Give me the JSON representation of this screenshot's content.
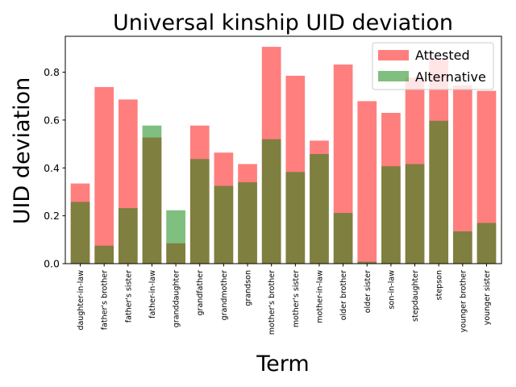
{
  "chart_data": {
    "type": "bar",
    "title": "Universal kinship UID deviation",
    "xlabel": "Term",
    "ylabel": "UID deviation",
    "ylim": [
      0,
      0.95
    ],
    "yticks": [
      "0.0",
      "0.2",
      "0.4",
      "0.6",
      "0.8"
    ],
    "ytick_values": [
      0,
      0.2,
      0.4,
      0.6,
      0.8
    ],
    "legend_position": "top-right",
    "grid": false,
    "categories": [
      "daughter-in-law",
      "father's brother",
      "father's sister",
      "father-in-law",
      "granddaughter",
      "grandfather",
      "grandmother",
      "grandson",
      "mother's brother",
      "mother's sister",
      "mother-in-law",
      "older brother",
      "older sister",
      "son-in-law",
      "stepdaughter",
      "stepson",
      "younger brother",
      "younger sister"
    ],
    "series": [
      {
        "name": "Attested",
        "color": "#ff0000",
        "opacity": 0.5,
        "values": [
          0.335,
          0.738,
          0.686,
          0.527,
          0.085,
          0.577,
          0.464,
          0.416,
          0.906,
          0.785,
          0.514,
          0.832,
          0.679,
          0.63,
          0.777,
          0.86,
          0.745,
          0.722
        ]
      },
      {
        "name": "Alternative",
        "color": "#008000",
        "opacity": 0.5,
        "values": [
          0.258,
          0.075,
          0.232,
          0.577,
          0.223,
          0.437,
          0.325,
          0.34,
          0.52,
          0.383,
          0.458,
          0.212,
          0.008,
          0.407,
          0.416,
          0.597,
          0.135,
          0.17
        ]
      }
    ]
  }
}
